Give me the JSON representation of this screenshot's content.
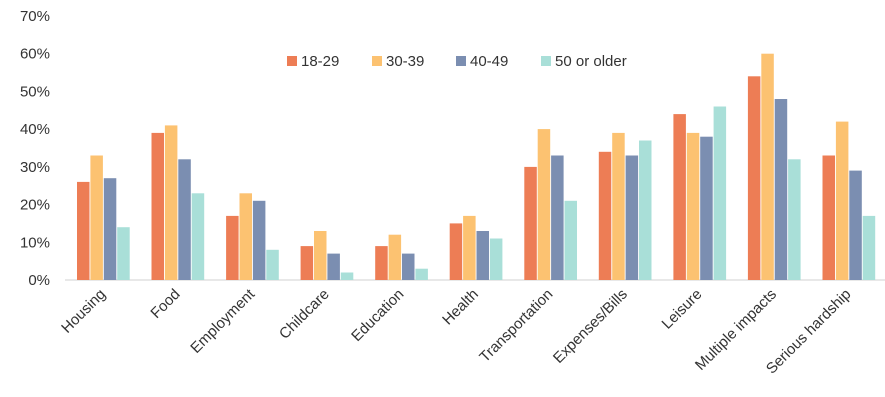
{
  "chart_data": {
    "type": "bar",
    "title": "",
    "xlabel": "",
    "ylabel": "",
    "ylim": [
      0,
      70
    ],
    "y_ticks": [
      0,
      10,
      20,
      30,
      40,
      50,
      60,
      70
    ],
    "y_tick_labels": [
      "0%",
      "10%",
      "20%",
      "30%",
      "40%",
      "50%",
      "60%",
      "70%"
    ],
    "grid": false,
    "legend_position": "top-center",
    "categories": [
      "Housing",
      "Food",
      "Employment",
      "Childcare",
      "Education",
      "Health",
      "Transportation",
      "Expenses/Bills",
      "Leisure",
      "Multiple impacts",
      "Serious hardship"
    ],
    "series": [
      {
        "name": "18-29",
        "color": "#ed7d55",
        "values": [
          26,
          39,
          17,
          9,
          9,
          15,
          30,
          34,
          44,
          54,
          33
        ]
      },
      {
        "name": "30-39",
        "color": "#fcc271",
        "values": [
          33,
          41,
          23,
          13,
          12,
          17,
          40,
          39,
          39,
          60,
          42
        ]
      },
      {
        "name": "40-49",
        "color": "#7b8eb1",
        "values": [
          27,
          32,
          21,
          7,
          7,
          13,
          33,
          33,
          38,
          48,
          29
        ]
      },
      {
        "name": "50 or older",
        "color": "#a9dfd8",
        "values": [
          14,
          23,
          8,
          2,
          3,
          11,
          21,
          37,
          46,
          32,
          17
        ]
      }
    ]
  }
}
